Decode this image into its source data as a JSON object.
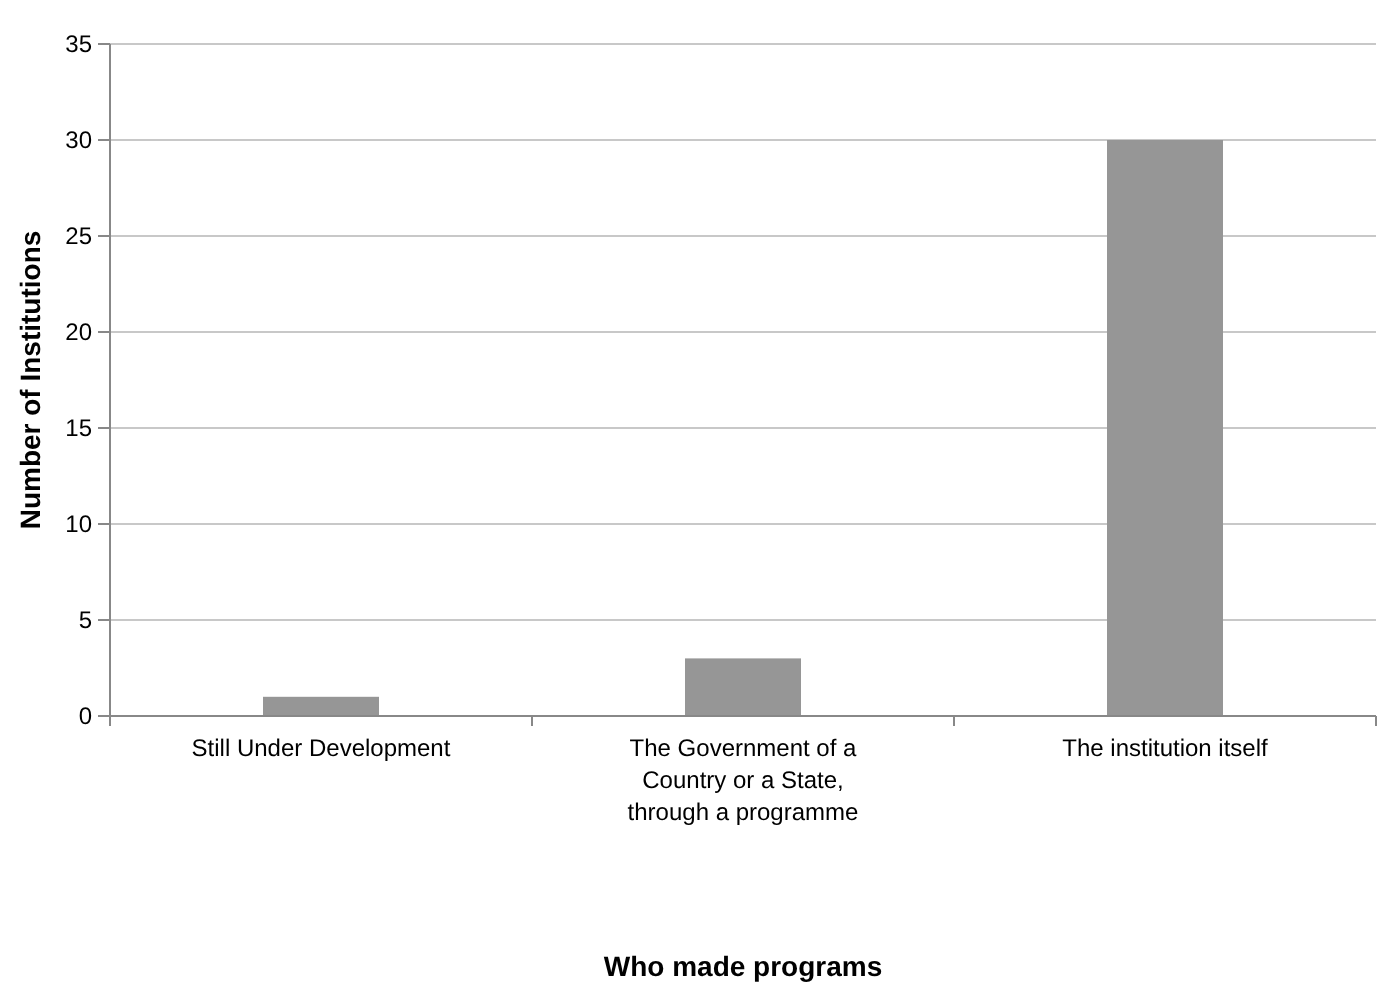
{
  "chart_data": {
    "type": "bar",
    "xlabel": "Who made programs",
    "ylabel": "Number of Institutions",
    "categories": [
      "Still Under Development",
      "The Government of a Country or a State, through a programme",
      "The institution itself"
    ],
    "values": [
      1,
      3,
      30
    ],
    "color": "#969696",
    "ylim": [
      0,
      35
    ],
    "yticks": [
      0,
      5,
      10,
      15,
      20,
      25,
      30,
      35
    ],
    "grid": "y"
  }
}
